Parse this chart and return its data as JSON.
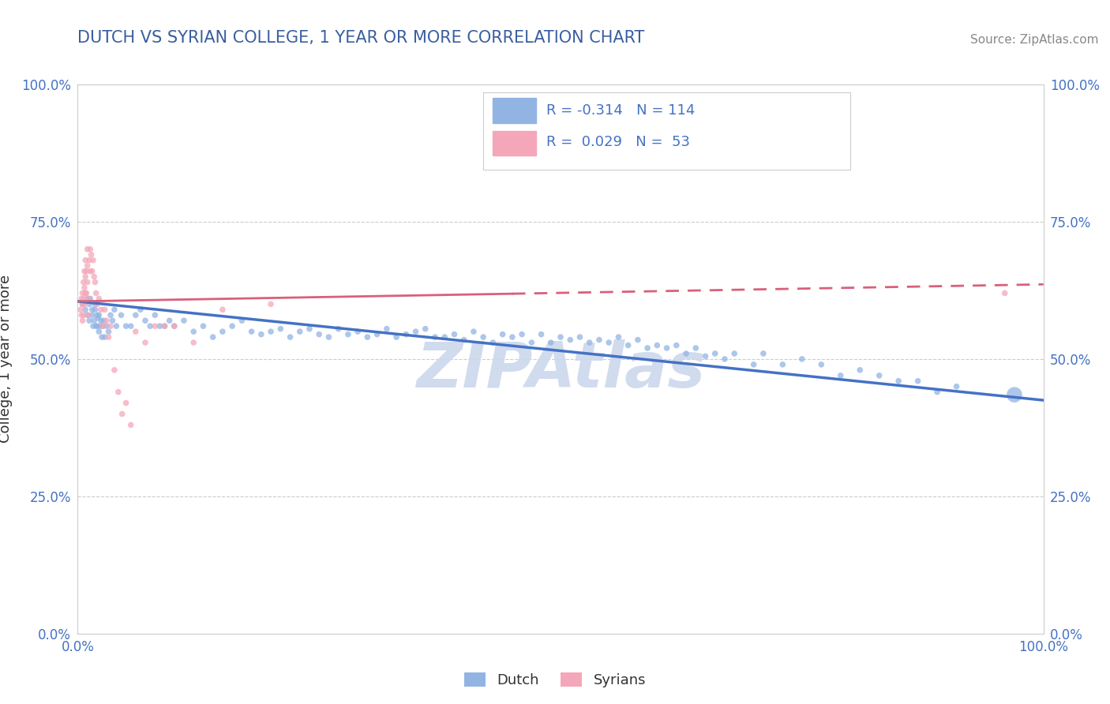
{
  "title": "DUTCH VS SYRIAN COLLEGE, 1 YEAR OR MORE CORRELATION CHART",
  "ylabel": "College, 1 year or more",
  "source_text": "Source: ZipAtlas.com",
  "xlim": [
    0.0,
    1.0
  ],
  "ylim": [
    0.0,
    1.0
  ],
  "ytick_positions": [
    0.0,
    0.25,
    0.5,
    0.75,
    1.0
  ],
  "ytick_labels": [
    "0.0%",
    "25.0%",
    "50.0%",
    "75.0%",
    "100.0%"
  ],
  "xtick_positions": [
    0.0,
    1.0
  ],
  "xtick_labels": [
    "0.0%",
    "100.0%"
  ],
  "dutch_color": "#92b4e3",
  "syrian_color": "#f4a7b9",
  "dutch_line_color": "#4472c4",
  "syrian_line_color": "#d9607a",
  "title_color": "#3a5fa0",
  "axis_label_color": "#333333",
  "tick_color": "#4472c4",
  "grid_color": "#cccccc",
  "background_color": "#ffffff",
  "watermark": "ZIPAtlas",
  "watermark_color": "#ccd8ed",
  "legend_text_color": "#4472c4",
  "dutch_R": -0.314,
  "dutch_N": 114,
  "syrian_R": 0.029,
  "syrian_N": 53,
  "dutch_line_y0": 0.605,
  "dutch_line_y1": 0.425,
  "syrian_line_y0": 0.605,
  "syrian_line_y1": 0.636,
  "dutch_x": [
    0.005,
    0.008,
    0.01,
    0.01,
    0.012,
    0.012,
    0.013,
    0.015,
    0.015,
    0.016,
    0.017,
    0.018,
    0.018,
    0.019,
    0.02,
    0.02,
    0.021,
    0.022,
    0.022,
    0.023,
    0.024,
    0.025,
    0.026,
    0.027,
    0.028,
    0.03,
    0.032,
    0.034,
    0.036,
    0.038,
    0.04,
    0.045,
    0.05,
    0.055,
    0.06,
    0.065,
    0.07,
    0.075,
    0.08,
    0.085,
    0.09,
    0.095,
    0.1,
    0.11,
    0.12,
    0.13,
    0.14,
    0.15,
    0.16,
    0.17,
    0.18,
    0.19,
    0.2,
    0.21,
    0.22,
    0.23,
    0.24,
    0.25,
    0.26,
    0.27,
    0.28,
    0.29,
    0.3,
    0.31,
    0.32,
    0.33,
    0.34,
    0.35,
    0.36,
    0.37,
    0.38,
    0.39,
    0.4,
    0.41,
    0.42,
    0.43,
    0.44,
    0.45,
    0.46,
    0.47,
    0.48,
    0.49,
    0.5,
    0.51,
    0.52,
    0.53,
    0.54,
    0.55,
    0.56,
    0.57,
    0.58,
    0.59,
    0.6,
    0.61,
    0.62,
    0.63,
    0.64,
    0.65,
    0.66,
    0.67,
    0.68,
    0.7,
    0.71,
    0.73,
    0.75,
    0.77,
    0.79,
    0.81,
    0.83,
    0.85,
    0.87,
    0.89,
    0.91,
    0.97
  ],
  "dutch_y": [
    0.6,
    0.59,
    0.61,
    0.58,
    0.57,
    0.6,
    0.61,
    0.59,
    0.58,
    0.56,
    0.57,
    0.6,
    0.59,
    0.56,
    0.58,
    0.56,
    0.575,
    0.58,
    0.55,
    0.56,
    0.57,
    0.54,
    0.56,
    0.57,
    0.54,
    0.56,
    0.55,
    0.58,
    0.57,
    0.59,
    0.56,
    0.58,
    0.56,
    0.56,
    0.58,
    0.59,
    0.57,
    0.56,
    0.58,
    0.56,
    0.56,
    0.57,
    0.56,
    0.57,
    0.55,
    0.56,
    0.54,
    0.55,
    0.56,
    0.57,
    0.55,
    0.545,
    0.55,
    0.555,
    0.54,
    0.55,
    0.555,
    0.545,
    0.54,
    0.555,
    0.545,
    0.55,
    0.54,
    0.545,
    0.555,
    0.54,
    0.545,
    0.55,
    0.555,
    0.54,
    0.54,
    0.545,
    0.535,
    0.55,
    0.54,
    0.53,
    0.545,
    0.54,
    0.545,
    0.53,
    0.545,
    0.53,
    0.54,
    0.535,
    0.54,
    0.53,
    0.535,
    0.53,
    0.54,
    0.525,
    0.535,
    0.52,
    0.525,
    0.52,
    0.525,
    0.51,
    0.52,
    0.505,
    0.51,
    0.5,
    0.51,
    0.49,
    0.51,
    0.49,
    0.5,
    0.49,
    0.47,
    0.48,
    0.47,
    0.46,
    0.46,
    0.44,
    0.45,
    0.435
  ],
  "dutch_sizes": [
    30,
    30,
    30,
    30,
    30,
    30,
    30,
    30,
    30,
    30,
    30,
    30,
    30,
    30,
    30,
    30,
    30,
    30,
    30,
    30,
    30,
    30,
    30,
    30,
    30,
    30,
    30,
    30,
    30,
    30,
    30,
    30,
    30,
    30,
    30,
    30,
    30,
    30,
    30,
    30,
    30,
    30,
    30,
    30,
    30,
    30,
    30,
    30,
    30,
    30,
    30,
    30,
    30,
    30,
    30,
    30,
    30,
    30,
    30,
    30,
    30,
    30,
    30,
    30,
    30,
    30,
    30,
    30,
    30,
    30,
    30,
    30,
    30,
    30,
    30,
    30,
    30,
    30,
    30,
    30,
    30,
    30,
    30,
    30,
    30,
    30,
    30,
    30,
    30,
    30,
    30,
    30,
    30,
    30,
    30,
    30,
    30,
    30,
    30,
    30,
    30,
    30,
    30,
    30,
    30,
    30,
    30,
    30,
    30,
    30,
    30,
    30,
    30,
    200
  ],
  "syrian_x": [
    0.003,
    0.004,
    0.004,
    0.005,
    0.005,
    0.005,
    0.006,
    0.006,
    0.006,
    0.007,
    0.007,
    0.007,
    0.008,
    0.008,
    0.008,
    0.009,
    0.009,
    0.01,
    0.01,
    0.01,
    0.011,
    0.011,
    0.012,
    0.013,
    0.013,
    0.014,
    0.015,
    0.016,
    0.017,
    0.018,
    0.019,
    0.02,
    0.022,
    0.024,
    0.026,
    0.028,
    0.03,
    0.032,
    0.034,
    0.038,
    0.042,
    0.046,
    0.05,
    0.055,
    0.06,
    0.07,
    0.08,
    0.09,
    0.1,
    0.12,
    0.15,
    0.2,
    0.96
  ],
  "syrian_y": [
    0.59,
    0.61,
    0.58,
    0.62,
    0.6,
    0.57,
    0.64,
    0.61,
    0.58,
    0.66,
    0.63,
    0.6,
    0.68,
    0.65,
    0.62,
    0.66,
    0.62,
    0.7,
    0.67,
    0.64,
    0.61,
    0.58,
    0.68,
    0.7,
    0.66,
    0.69,
    0.66,
    0.68,
    0.65,
    0.64,
    0.62,
    0.6,
    0.61,
    0.59,
    0.56,
    0.59,
    0.57,
    0.54,
    0.56,
    0.48,
    0.44,
    0.4,
    0.42,
    0.38,
    0.55,
    0.53,
    0.56,
    0.56,
    0.56,
    0.53,
    0.59,
    0.6,
    0.62
  ],
  "syrian_sizes": [
    30,
    30,
    30,
    30,
    30,
    30,
    30,
    30,
    30,
    30,
    30,
    30,
    30,
    30,
    30,
    30,
    30,
    30,
    30,
    30,
    30,
    30,
    30,
    30,
    30,
    30,
    30,
    30,
    30,
    30,
    30,
    30,
    30,
    30,
    30,
    30,
    30,
    30,
    30,
    30,
    30,
    30,
    30,
    30,
    30,
    30,
    30,
    30,
    30,
    30,
    30,
    30,
    30
  ]
}
